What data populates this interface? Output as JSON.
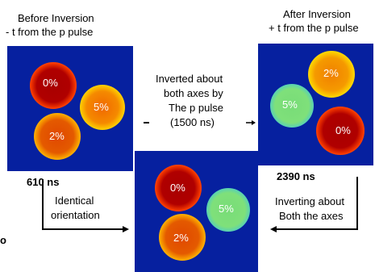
{
  "left": {
    "title_line1": "Before Inversion",
    "title_line2": "- t from the p pulse",
    "spots": [
      "0%",
      "5%",
      "2%"
    ],
    "time": "610 ns",
    "caption_line1": "Identical",
    "caption_line2": "orientation"
  },
  "middle": {
    "text_line1": "Inverted about",
    "text_line2": "both axes by",
    "text_line3": "The p pulse",
    "text_line4": "(1500 ns)",
    "spots": [
      "0%",
      "5%",
      "2%"
    ]
  },
  "right": {
    "title_line1": "After Inversion",
    "title_line2": "+ t from the p pulse",
    "spots": [
      "2%",
      "5%",
      "0%"
    ],
    "time": "2390 ns",
    "caption_line1": "Inverting about",
    "caption_line2": "Both the axes"
  },
  "stray_text": "o",
  "colors": {
    "background": "#06209f",
    "spot_0": "#a80000",
    "spot_2": "#e45a00",
    "spot_5_orange": "#f58a00",
    "spot_5_green": "#7fe07a"
  }
}
